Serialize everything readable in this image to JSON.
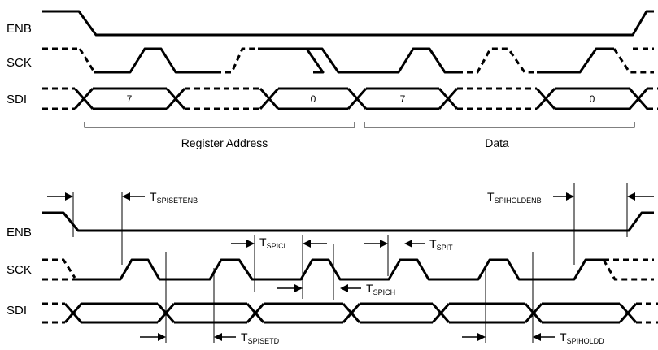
{
  "top_diagram": {
    "signals": [
      "ENB",
      "SCK",
      "SDI"
    ],
    "bits": [
      "7",
      "0",
      "7",
      "0"
    ],
    "brackets": [
      "Register Address",
      "Data"
    ]
  },
  "bottom_diagram": {
    "signals": [
      "ENB",
      "SCK",
      "SDI"
    ],
    "timing": [
      {
        "main": "T",
        "sub": "SPISETENB"
      },
      {
        "main": "T",
        "sub": "SPIHOLDENB"
      },
      {
        "main": "T",
        "sub": "SPICL"
      },
      {
        "main": "T",
        "sub": "SPIT"
      },
      {
        "main": "T",
        "sub": "SPICH"
      },
      {
        "main": "T",
        "sub": "SPISETD"
      },
      {
        "main": "T",
        "sub": "SPIHOLDD"
      }
    ]
  }
}
